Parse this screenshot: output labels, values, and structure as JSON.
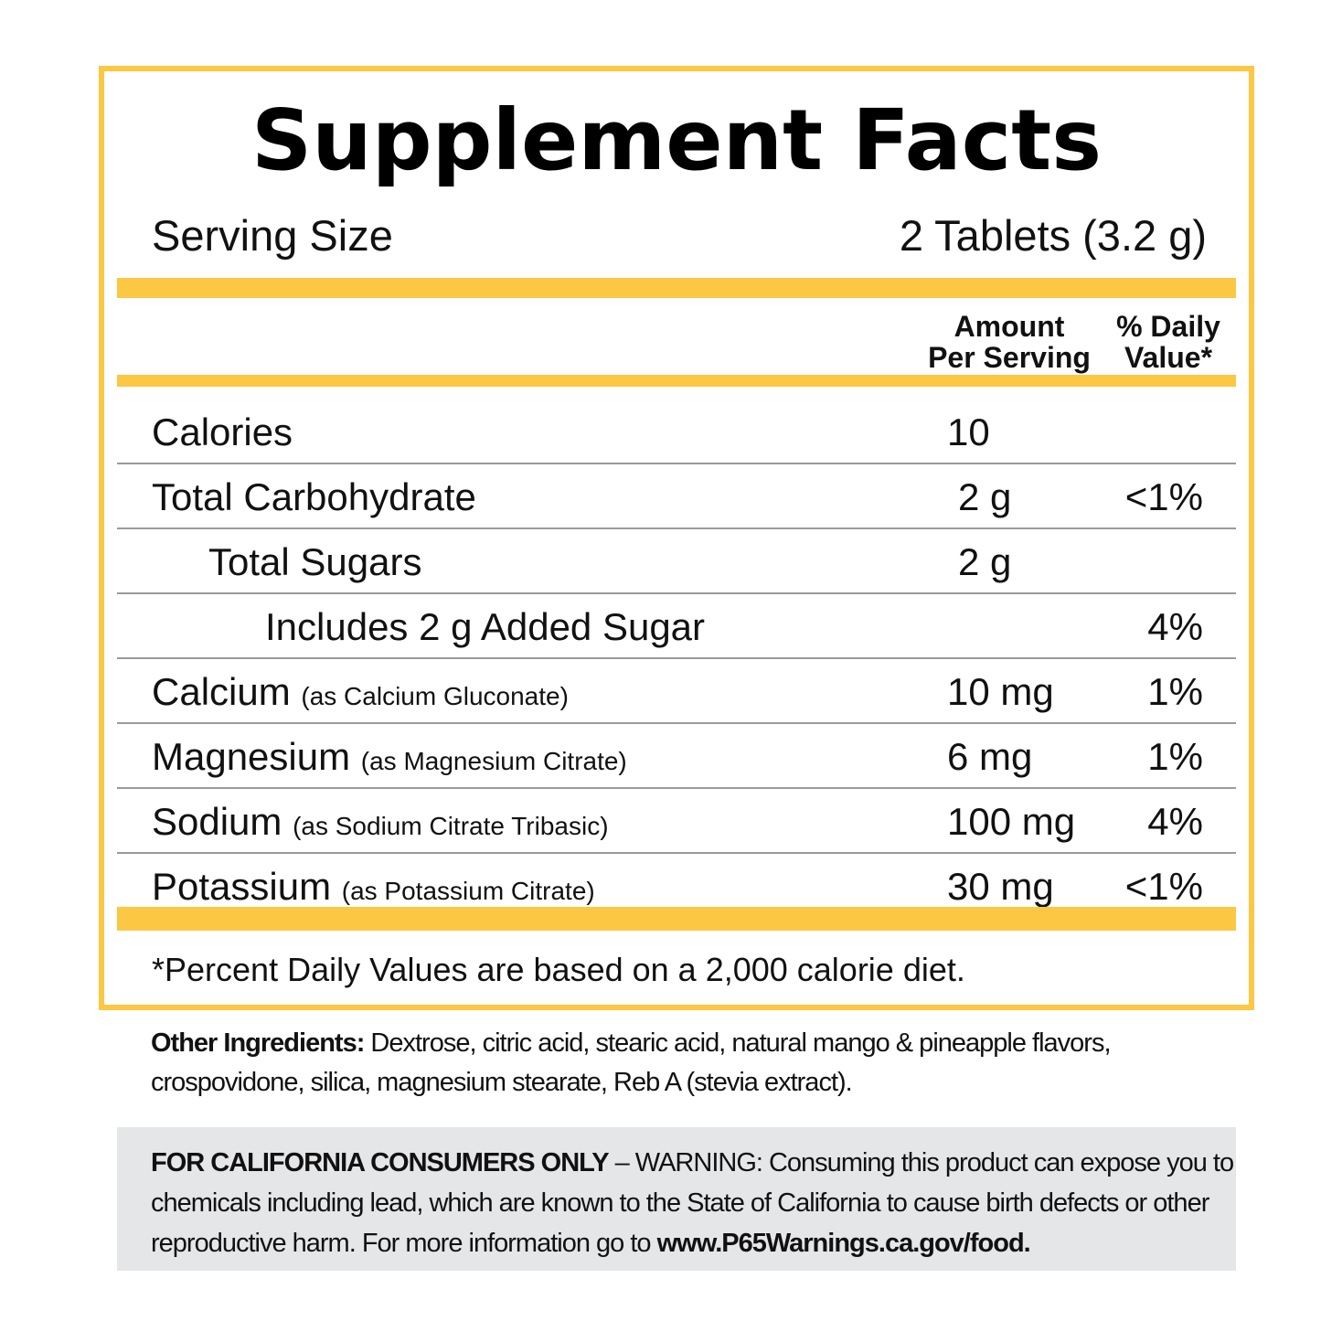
{
  "label": {
    "title": "Supplement Facts",
    "serving_size_label": "Serving Size",
    "serving_size_value": "2 Tablets (3.2 g)",
    "header": {
      "amount_line1": "Amount",
      "amount_line2": "Per Serving",
      "dv_line1": "% Daily",
      "dv_line2": "Value*"
    },
    "rows": [
      {
        "name": "Calories",
        "source": "",
        "amount": "10",
        "dv": "",
        "indent": 0
      },
      {
        "name": "Total Carbohydrate",
        "source": "",
        "amount": "2 g",
        "dv": "<1%",
        "indent": 0
      },
      {
        "name": "Total Sugars",
        "source": "",
        "amount": "2 g",
        "dv": "",
        "indent": 1
      },
      {
        "name": "Includes 2 g Added Sugar",
        "source": "",
        "amount": "",
        "dv": "4%",
        "indent": 2
      },
      {
        "name": "Calcium",
        "source": "(as Calcium Gluconate)",
        "amount": "10 mg",
        "dv": "1%",
        "indent": 0
      },
      {
        "name": "Magnesium",
        "source": "(as Magnesium Citrate)",
        "amount": "6 mg",
        "dv": "1%",
        "indent": 0
      },
      {
        "name": "Sodium",
        "source": "(as Sodium Citrate Tribasic)",
        "amount": "100 mg",
        "dv": "4%",
        "indent": 0
      },
      {
        "name": "Potassium",
        "source": "(as Potassium Citrate)",
        "amount": "30 mg",
        "dv": "<1%",
        "indent": 0
      }
    ],
    "footnote": "*Percent Daily Values are based on a 2,000 calorie diet."
  },
  "ingredients": {
    "label": "Other Ingredients:",
    "text": " Dextrose, citric acid, stearic acid, natural mango & pineapple flavors, crospovidone, silica, magnesium stearate, Reb A (stevia extract)."
  },
  "warning": {
    "bold_prefix": "FOR CALIFORNIA CONSUMERS ONLY",
    "text": " – WARNING: Consuming this product can expose you to chemicals including lead, which are known to the State of California to cause birth defects or other reproductive harm. For more information go to ",
    "link": "www.P65Warnings.ca.gov/food."
  },
  "colors": {
    "accent_yellow": "#FCC743",
    "warning_bg": "#E5E6E8",
    "divider": "#9A9A9A",
    "text": "#111111"
  }
}
